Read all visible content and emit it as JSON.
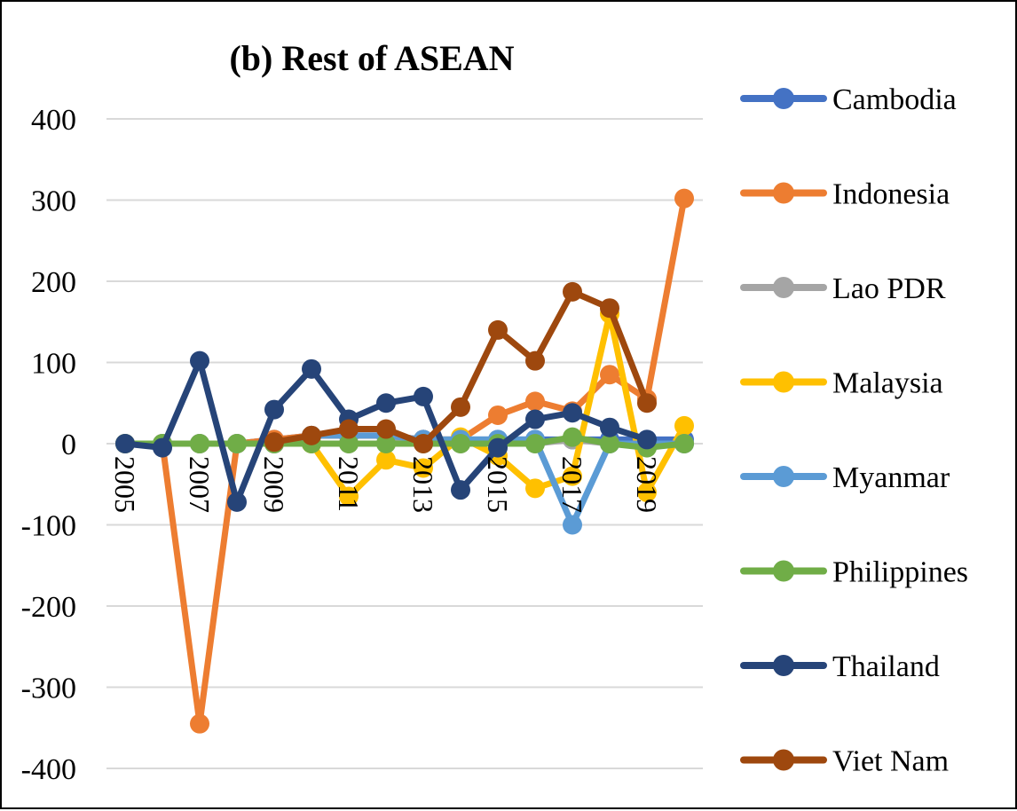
{
  "chart_data": {
    "type": "line",
    "title": "(b) Rest of ASEAN",
    "xlabel": "",
    "ylabel": "",
    "x": [
      2005,
      2006,
      2007,
      2008,
      2009,
      2010,
      2011,
      2012,
      2013,
      2014,
      2015,
      2016,
      2017,
      2018,
      2019,
      2020
    ],
    "x_tick_labels": [
      "2005",
      "2007",
      "2009",
      "2011",
      "2013",
      "2015",
      "2017",
      "2019"
    ],
    "ylim": [
      -400,
      400
    ],
    "y_ticks": [
      400,
      300,
      200,
      100,
      0,
      -100,
      -200,
      -300,
      -400
    ],
    "y_tick_labels": [
      "400",
      "300",
      "200",
      "100",
      "0",
      "-100",
      "-200",
      "-300",
      "-400"
    ],
    "grid": "horizontal",
    "legend_position": "right",
    "series": [
      {
        "name": "Cambodia",
        "color": "#4472C4",
        "values": [
          0,
          0,
          0,
          0,
          5,
          10,
          10,
          10,
          5,
          5,
          5,
          5,
          5,
          5,
          5,
          5
        ]
      },
      {
        "name": "Indonesia",
        "color": "#ED7D31",
        "values": [
          0,
          0,
          -345,
          0,
          5,
          10,
          10,
          10,
          5,
          5,
          35,
          52,
          40,
          85,
          55,
          302
        ]
      },
      {
        "name": "Lao PDR",
        "color": "#A5A5A5",
        "values": [
          0,
          0,
          0,
          0,
          0,
          0,
          0,
          0,
          5,
          0,
          0,
          0,
          5,
          0,
          0,
          0
        ]
      },
      {
        "name": "Malaysia",
        "color": "#FFC000",
        "values": [
          0,
          0,
          0,
          0,
          0,
          0,
          -65,
          -20,
          -30,
          8,
          -15,
          -55,
          -40,
          160,
          -60,
          22
        ]
      },
      {
        "name": "Myanmar",
        "color": "#5B9BD5",
        "values": [
          0,
          0,
          0,
          0,
          0,
          10,
          10,
          10,
          5,
          5,
          5,
          5,
          -100,
          0,
          0,
          0
        ]
      },
      {
        "name": "Philippines",
        "color": "#70AD47",
        "values": [
          0,
          0,
          0,
          0,
          0,
          0,
          0,
          0,
          0,
          0,
          0,
          0,
          8,
          0,
          -5,
          0
        ]
      },
      {
        "name": "Thailand",
        "color": "#264478",
        "values": [
          0,
          -5,
          102,
          -72,
          42,
          92,
          30,
          50,
          58,
          -57,
          -5,
          30,
          38,
          20,
          5,
          null
        ]
      },
      {
        "name": "Viet Nam",
        "color": "#9E480E",
        "values": [
          null,
          null,
          null,
          null,
          2,
          10,
          18,
          18,
          0,
          45,
          140,
          102,
          187,
          167,
          50,
          null
        ]
      }
    ]
  }
}
